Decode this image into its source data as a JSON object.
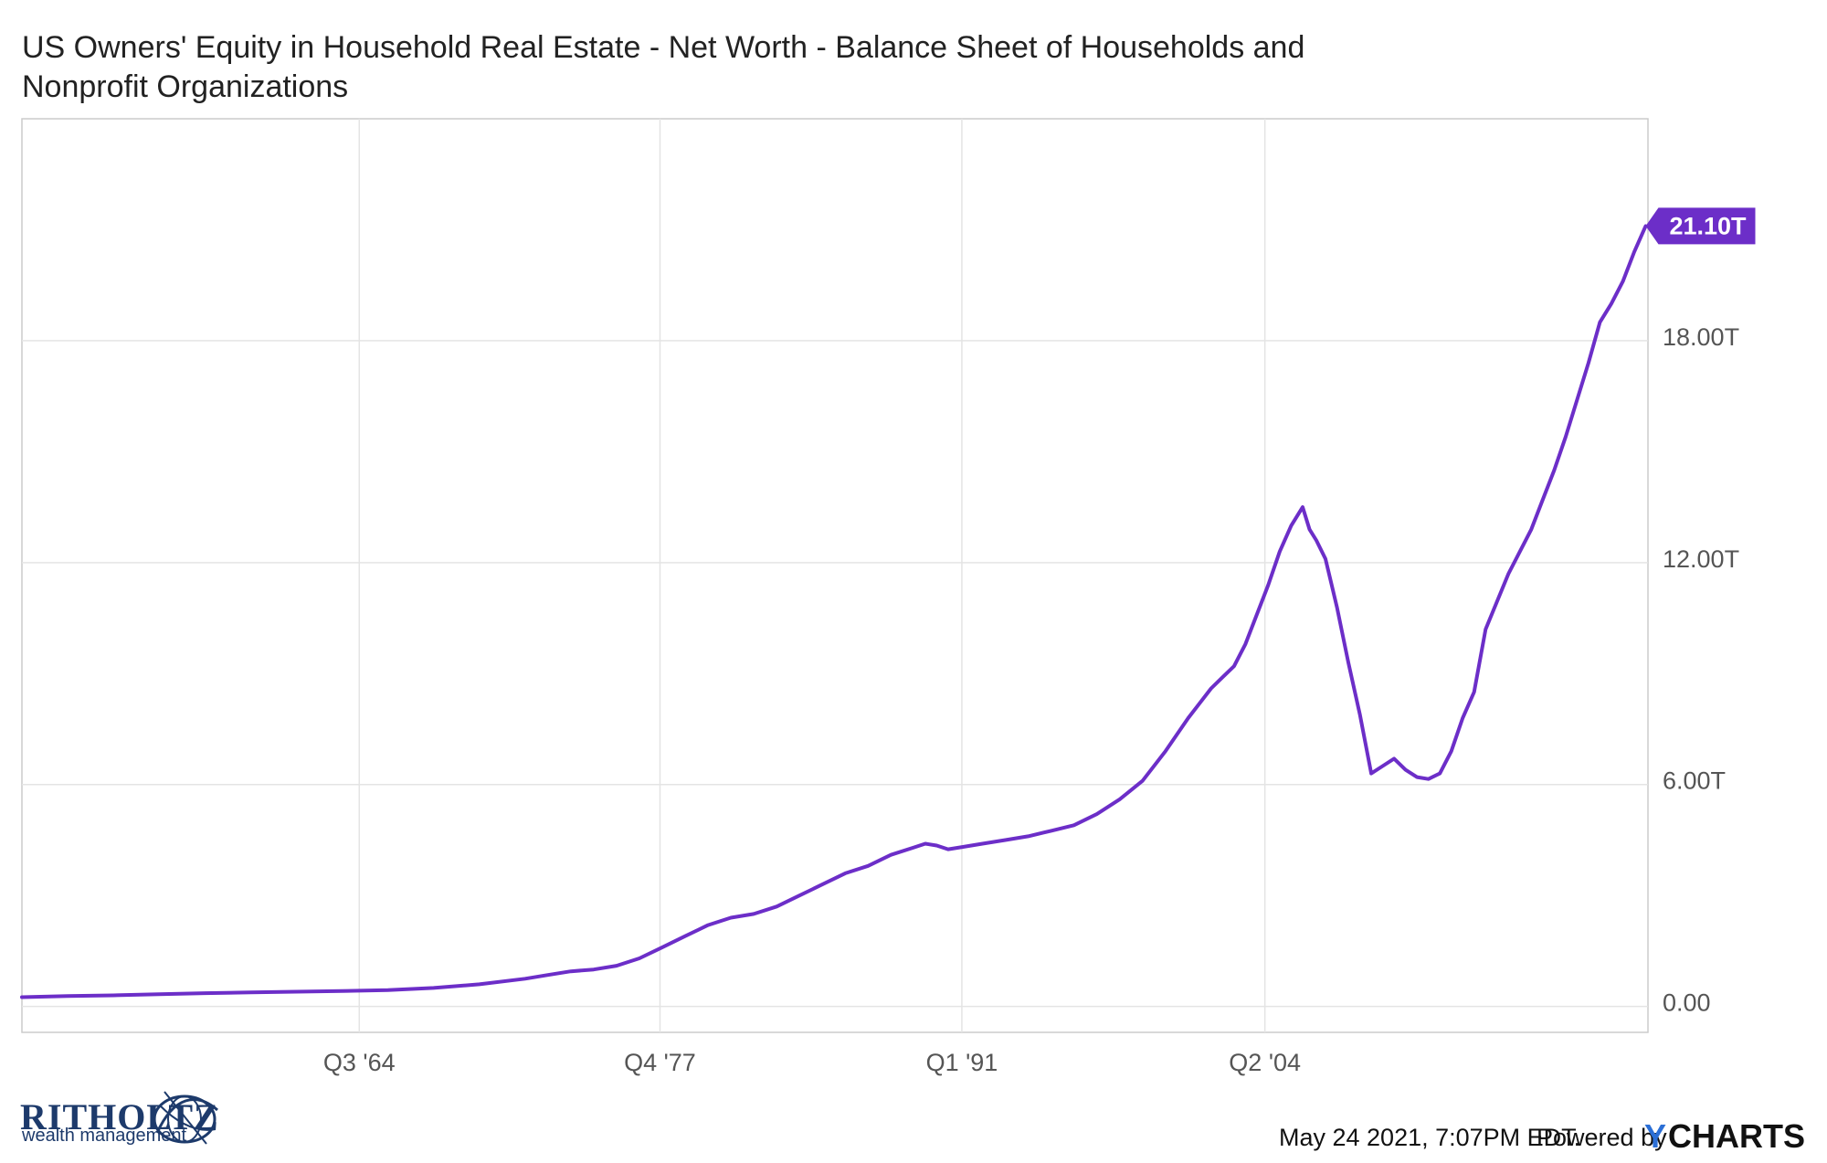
{
  "chart_data": {
    "type": "line",
    "title_line1": "US Owners' Equity in Household Real Estate - Net Worth - Balance Sheet of Households and",
    "title_line2": "Nonprofit Organizations",
    "x_ticks": [
      "Q3 '64",
      "Q4 '77",
      "Q1 '91",
      "Q2 '04"
    ],
    "y_ticks": [
      "18.00T",
      "12.00T",
      "6.00T",
      "0.00"
    ],
    "y_tick_values": [
      18,
      12,
      6,
      0
    ],
    "ylim": [
      -0.7,
      24
    ],
    "xlim": [
      1950,
      2021.1
    ],
    "grid": true,
    "color": "#6c2ec8",
    "last_value_label": "21.10T",
    "series": [
      {
        "x": [
          1950,
          1952,
          1954,
          1956,
          1958,
          1960,
          1962,
          1964,
          1966,
          1968,
          1970,
          1972,
          1973,
          1974,
          1975,
          1976,
          1977,
          1978,
          1979,
          1980,
          1981,
          1982,
          1983,
          1984,
          1985,
          1986,
          1987,
          1988,
          1989,
          1989.5,
          1990,
          1990.5,
          1991,
          1992,
          1993,
          1994,
          1995,
          1996,
          1997,
          1998,
          1999,
          2000,
          2001,
          2001.5,
          2002,
          2002.5,
          2003,
          2003.5,
          2004,
          2004.5,
          2005,
          2005.5,
          2006,
          2006.3,
          2006.6,
          2007,
          2007.5,
          2008,
          2008.5,
          2009,
          2009.5,
          2010,
          2010.5,
          2011,
          2011.5,
          2012,
          2012.5,
          2013,
          2013.5,
          2014,
          2015,
          2016,
          2016.5,
          2017,
          2017.5,
          2018,
          2018.5,
          2019,
          2019.5,
          2020,
          2020.5,
          2021
        ],
        "y": [
          0.25,
          0.28,
          0.3,
          0.33,
          0.36,
          0.38,
          0.4,
          0.42,
          0.44,
          0.5,
          0.6,
          0.75,
          0.85,
          0.95,
          1.0,
          1.1,
          1.3,
          1.6,
          1.9,
          2.2,
          2.4,
          2.5,
          2.7,
          3.0,
          3.3,
          3.6,
          3.8,
          4.1,
          4.3,
          4.4,
          4.35,
          4.25,
          4.3,
          4.4,
          4.5,
          4.6,
          4.75,
          4.9,
          5.2,
          5.6,
          6.1,
          6.9,
          7.8,
          8.2,
          8.6,
          8.9,
          9.2,
          9.8,
          10.6,
          11.4,
          12.3,
          13.0,
          13.5,
          12.9,
          12.6,
          12.1,
          10.8,
          9.3,
          7.9,
          6.3,
          6.5,
          6.7,
          6.4,
          6.2,
          6.15,
          6.3,
          6.9,
          7.8,
          8.5,
          10.2,
          11.7,
          12.9,
          13.7,
          14.5,
          15.4,
          16.4,
          17.4,
          18.5,
          19.0,
          19.6,
          20.4,
          21.1
        ]
      }
    ]
  },
  "footer": {
    "timestamp": "May 24 2021, 7:07PM EDT.",
    "powered_by": "Powered by",
    "ycharts_y": "Y",
    "ycharts_word": "CHARTS",
    "brand_name": "RITHOLTZ",
    "brand_sub": "wealth management"
  },
  "colors": {
    "line": "#6c2ec8",
    "grid": "#e4e4e4",
    "axis": "#cccccc",
    "brand": "#1d3a6b",
    "ycharts_accent": "#2b6fd6"
  },
  "icons": {
    "brand_logo": "ritholtz-globe-logo"
  }
}
